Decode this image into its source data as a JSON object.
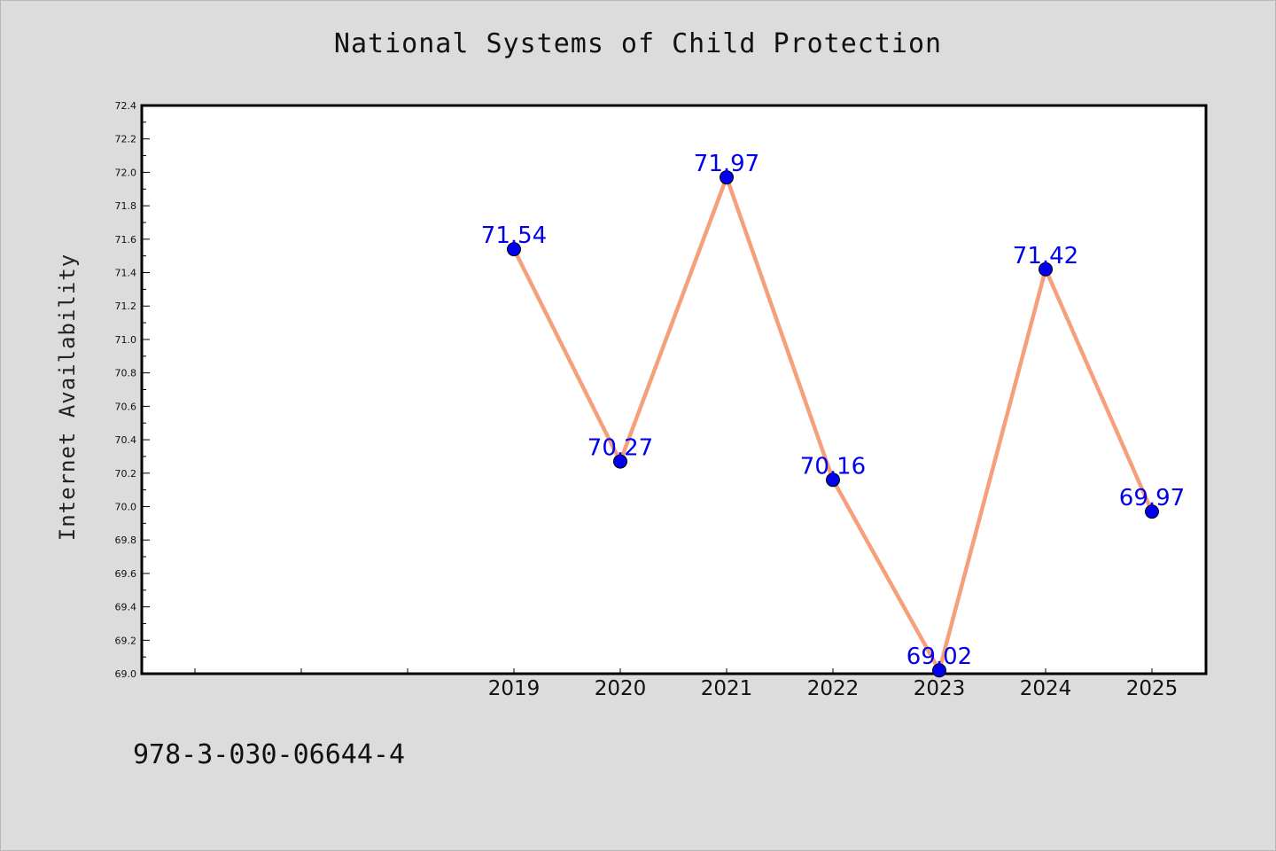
{
  "chart_data": {
    "type": "line",
    "title": "National Systems of Child Protection",
    "xlabel": "",
    "ylabel": "Internet Availability",
    "categories": [
      "",
      "",
      "",
      "2019",
      "2020",
      "2021",
      "2022",
      "2023",
      "2024",
      "2025"
    ],
    "series": [
      {
        "values": [
          null,
          null,
          null,
          71.54,
          70.27,
          71.97,
          70.16,
          69.02,
          71.42,
          69.97
        ],
        "line_color": "#f5a07a",
        "marker_color": "#0000ee",
        "label_color": "#0000ee"
      }
    ],
    "data_labels": [
      "",
      "",
      "",
      "71.54",
      "70.27",
      "71.97",
      "70.16",
      "69.02",
      "71.42",
      "69.97"
    ],
    "ylim": [
      69.0,
      72.4
    ],
    "yticks": [
      "69.0",
      "69.2",
      "69.4",
      "69.6",
      "69.8",
      "70.0",
      "70.2",
      "70.4",
      "70.6",
      "70.8",
      "71.0",
      "71.2",
      "71.4",
      "71.6",
      "71.8",
      "72.0",
      "72.2",
      "72.4"
    ],
    "grid": false,
    "legend": "none"
  },
  "footer_text": "978-3-030-06644-4",
  "colors": {
    "background": "#dcdcdc",
    "plot_background": "#ffffff",
    "axis": "#000000"
  }
}
